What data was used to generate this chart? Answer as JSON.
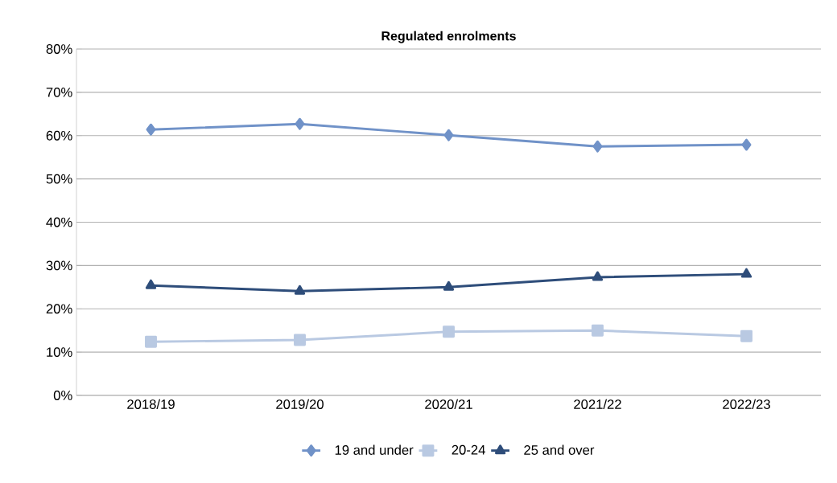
{
  "chart_data": {
    "type": "line",
    "title": "Regulated enrolments",
    "categories": [
      "2018/19",
      "2019/20",
      "2020/21",
      "2021/22",
      "2022/23"
    ],
    "series": [
      {
        "name": "19 and under",
        "color": "#7092c8",
        "marker": "diamond",
        "values": [
          61.4,
          62.7,
          60.1,
          57.5,
          57.9
        ]
      },
      {
        "name": "20-24",
        "color": "#b9c9e2",
        "marker": "square",
        "values": [
          12.4,
          12.8,
          14.7,
          15.0,
          13.7
        ]
      },
      {
        "name": "25 and over",
        "color": "#2e4d7a",
        "marker": "triangle",
        "values": [
          25.4,
          24.1,
          25.0,
          27.3,
          28.0
        ]
      }
    ],
    "ylim": [
      0,
      80
    ],
    "yticks": [
      {
        "value": 0,
        "label": "0%"
      },
      {
        "value": 10,
        "label": "10%"
      },
      {
        "value": 20,
        "label": "20%"
      },
      {
        "value": 30,
        "label": "30%"
      },
      {
        "value": 40,
        "label": "40%"
      },
      {
        "value": 50,
        "label": "50%"
      },
      {
        "value": 60,
        "label": "60%"
      },
      {
        "value": 70,
        "label": "70%"
      },
      {
        "value": 80,
        "label": "80%"
      }
    ],
    "grid": "y",
    "legend": "bottom",
    "line_style": "solid"
  }
}
